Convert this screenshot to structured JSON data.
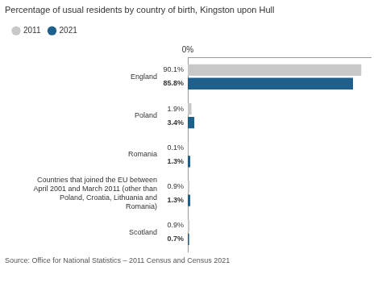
{
  "chart_data": {
    "type": "bar",
    "orientation": "horizontal",
    "title": "Percentage of usual residents by country of birth, Kingston upon Hull",
    "categories": [
      "England",
      "Poland",
      "Romania",
      "Countries that joined the EU between\nApril 2001 and March 2011 (other than\nPoland, Croatia, Lithuania and\nRomania)",
      "Scotland"
    ],
    "series": [
      {
        "name": "2011",
        "color": "#c8c8c8",
        "values": [
          90.1,
          1.9,
          0.1,
          0.9,
          0.9
        ],
        "value_labels": [
          "90.1%",
          "1.9%",
          "0.1%",
          "0.9%",
          "0.9%"
        ]
      },
      {
        "name": "2021",
        "color": "#1f5f8b",
        "values": [
          85.8,
          3.4,
          1.3,
          1.3,
          0.7
        ],
        "value_labels": [
          "85.8%",
          "3.4%",
          "1.3%",
          "1.3%",
          "0.7%"
        ]
      }
    ],
    "xlim": [
      0,
      95
    ],
    "xticks": [
      {
        "value": 0,
        "label": "0%"
      }
    ],
    "data_labels": true,
    "grid": false,
    "legend": "top",
    "annotations": [
      "Source: Office for National Statistics – 2011 Census and Census 2021"
    ]
  }
}
